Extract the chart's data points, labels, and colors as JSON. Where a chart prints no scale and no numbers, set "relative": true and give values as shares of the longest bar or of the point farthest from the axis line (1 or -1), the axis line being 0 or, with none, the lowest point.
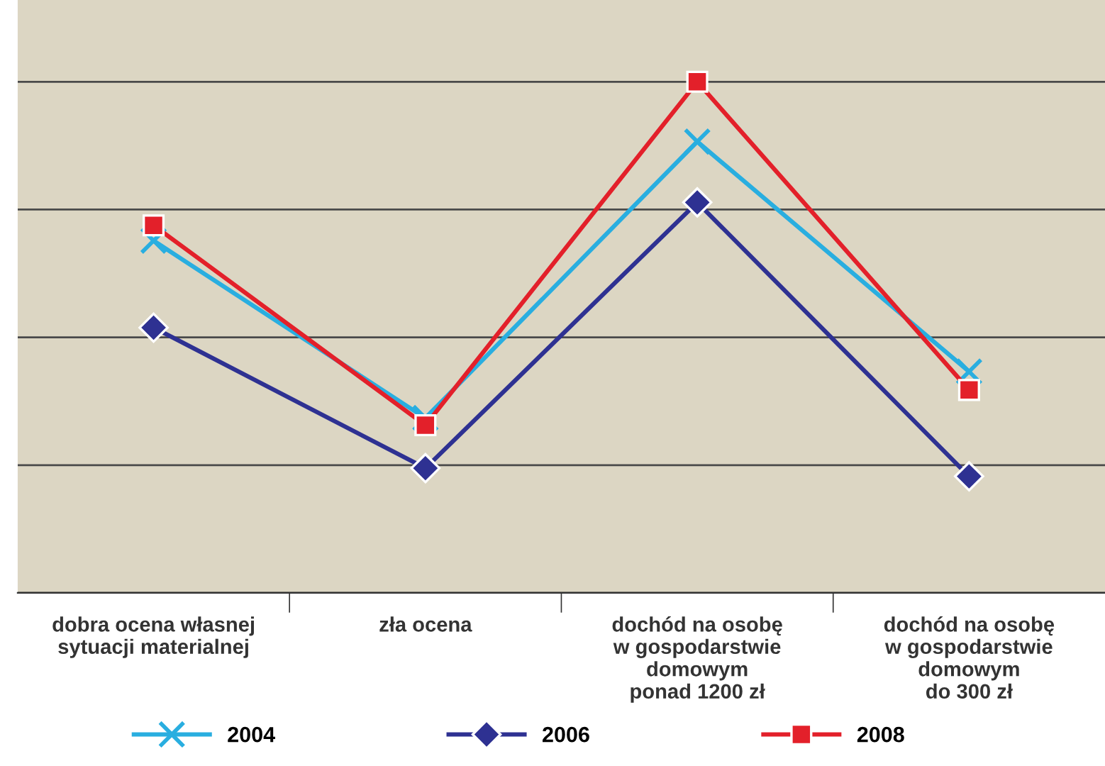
{
  "chart_data": {
    "type": "line",
    "relative": true,
    "grid": "y",
    "legend": "bottom",
    "categories": [
      "dobra ocena własnej\nsytuacji materialnej",
      "zła ocena",
      "dochód na osobę\nw gospodarstwie\ndomowym\nponad 1200 zł",
      "dochód na osobę\nw gospodarstwie\ndomowym\ndo 300 zł"
    ],
    "series": [
      {
        "name": "2004",
        "color": "#29aee0",
        "marker": "cross",
        "values": [
          0.689,
          0.342,
          0.883,
          0.433
        ]
      },
      {
        "name": "2006",
        "color": "#2e3192",
        "marker": "diamond",
        "values": [
          0.519,
          0.244,
          0.764,
          0.228
        ]
      },
      {
        "name": "2008",
        "color": "#e3202a",
        "marker": "square",
        "values": [
          0.719,
          0.328,
          1.0,
          0.397
        ]
      }
    ]
  }
}
